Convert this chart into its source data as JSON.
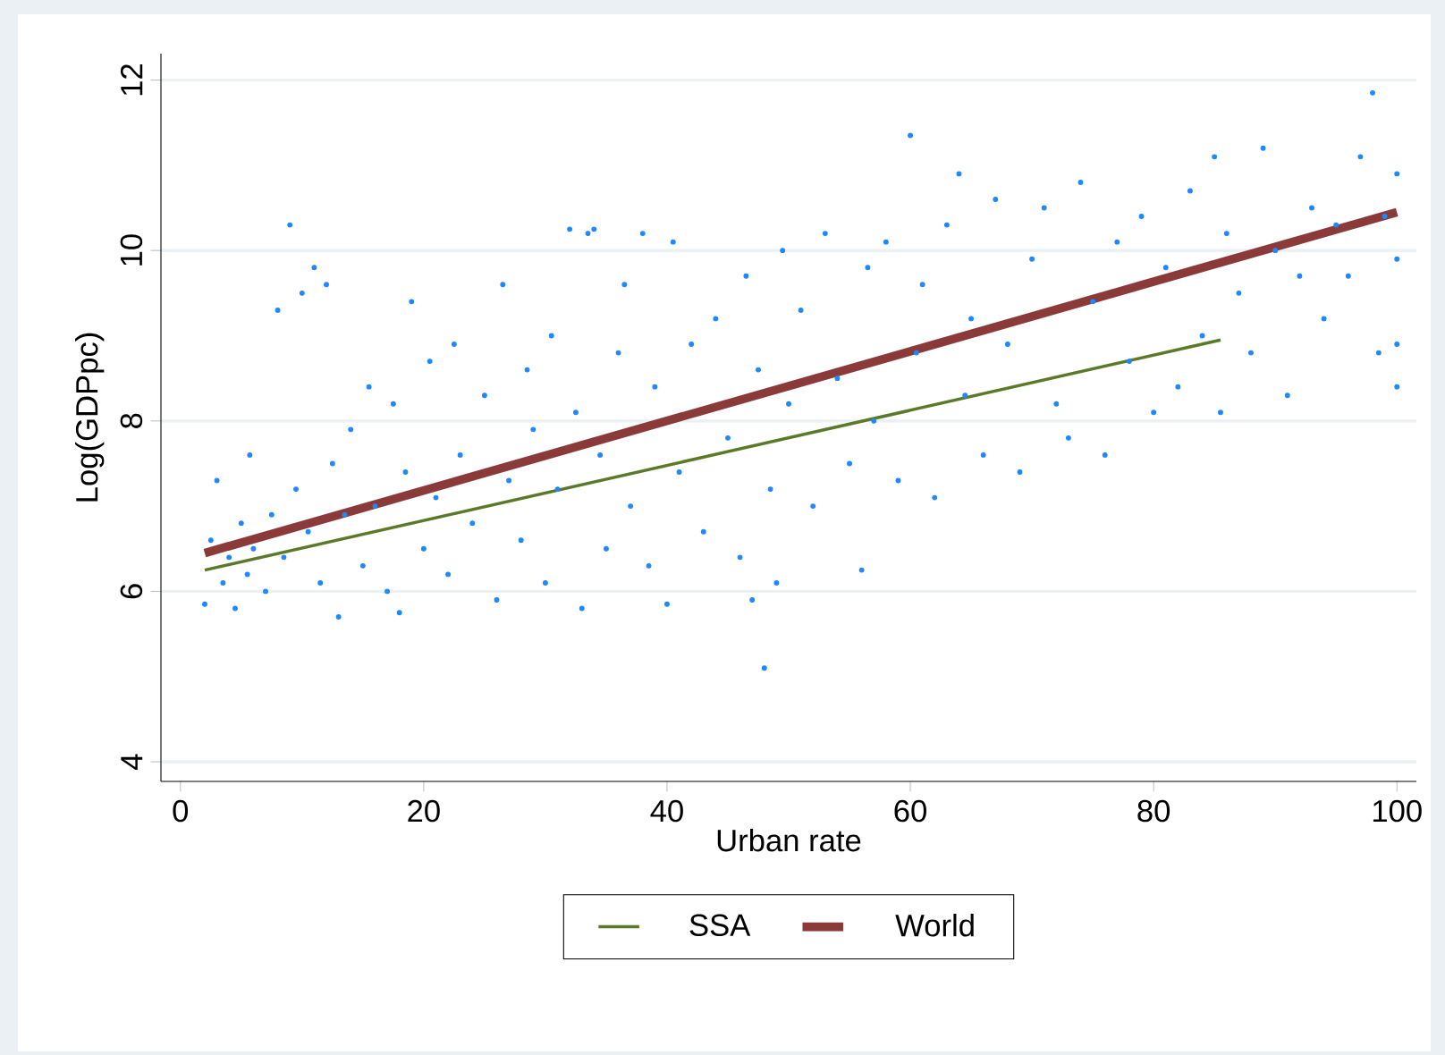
{
  "chart_data": {
    "type": "scatter",
    "xlabel": "Urban rate",
    "ylabel": "Log(GDPpc)",
    "xlim": [
      -1.6,
      101.6
    ],
    "ylim": [
      3.77,
      12.31
    ],
    "xticks": [
      0,
      20,
      40,
      60,
      80,
      100
    ],
    "yticks": [
      4,
      6,
      8,
      10,
      12
    ],
    "grid": "y",
    "legend": "bottom",
    "series": [
      {
        "color": "#1e88ff",
        "marker": "circle",
        "x": [
          2,
          2.5,
          3,
          3.5,
          4,
          4.5,
          5,
          5.5,
          5.7,
          6,
          7,
          7.5,
          8,
          8.5,
          9,
          9.5,
          10,
          10.5,
          11,
          11.5,
          12,
          12.5,
          13,
          13.5,
          14,
          15,
          15.5,
          16,
          17,
          17.5,
          18,
          18.5,
          19,
          20,
          20.5,
          21,
          22,
          22.5,
          23,
          24,
          25,
          26,
          26.5,
          27,
          28,
          28.5,
          29,
          30,
          30.5,
          31,
          32,
          32.5,
          33,
          33.5,
          34,
          34.5,
          35,
          36,
          36.5,
          37,
          38,
          38.5,
          39,
          40,
          40.5,
          41,
          42,
          43,
          44,
          45,
          46,
          46.5,
          47,
          47.5,
          48,
          48.5,
          49,
          49.5,
          50,
          51,
          52,
          53,
          54,
          55,
          56,
          56.5,
          57,
          58,
          59,
          60,
          60.5,
          61,
          62,
          63,
          64,
          64.5,
          65,
          66,
          67,
          68,
          69,
          70,
          71,
          72,
          73,
          74,
          75,
          76,
          77,
          78,
          79,
          80,
          81,
          82,
          83,
          84,
          85,
          85.5,
          86,
          87,
          88,
          89,
          90,
          91,
          92,
          93,
          94,
          95,
          96,
          97,
          98,
          98.5,
          99,
          100,
          100,
          100,
          100
        ],
        "values": [
          5.85,
          6.6,
          7.3,
          6.1,
          6.4,
          5.8,
          6.8,
          6.2,
          7.6,
          6.5,
          6.0,
          6.9,
          9.3,
          6.4,
          10.3,
          7.2,
          9.5,
          6.7,
          9.8,
          6.1,
          9.6,
          7.5,
          5.7,
          6.9,
          7.9,
          6.3,
          8.4,
          7.0,
          6.0,
          8.2,
          5.75,
          7.4,
          9.4,
          6.5,
          8.7,
          7.1,
          6.2,
          8.9,
          7.6,
          6.8,
          8.3,
          5.9,
          9.6,
          7.3,
          6.6,
          8.6,
          7.9,
          6.1,
          9.0,
          7.2,
          10.25,
          8.1,
          5.8,
          10.2,
          10.25,
          7.6,
          6.5,
          8.8,
          9.6,
          7.0,
          10.2,
          6.3,
          8.4,
          5.85,
          10.1,
          7.4,
          8.9,
          6.7,
          9.2,
          7.8,
          6.4,
          9.7,
          5.9,
          8.6,
          5.1,
          7.2,
          6.1,
          10.0,
          8.2,
          9.3,
          7.0,
          10.2,
          8.5,
          7.5,
          6.25,
          9.8,
          8.0,
          10.1,
          7.3,
          11.35,
          8.8,
          9.6,
          7.1,
          10.3,
          10.9,
          8.3,
          9.2,
          7.6,
          10.6,
          8.9,
          7.4,
          9.9,
          10.5,
          8.2,
          7.8,
          10.8,
          9.4,
          7.6,
          10.1,
          8.7,
          10.4,
          8.1,
          9.8,
          8.4,
          10.7,
          9.0,
          11.1,
          8.1,
          10.2,
          9.5,
          8.8,
          11.2,
          10.0,
          8.3,
          9.7,
          10.5,
          9.2,
          10.3,
          9.7,
          11.1,
          11.85,
          8.8,
          10.4,
          10.9,
          8.4,
          9.9,
          8.9
        ]
      },
      {
        "type": "line",
        "name": "SSA",
        "color": "#5a7a2a",
        "x": [
          2,
          85.5
        ],
        "values": [
          6.25,
          8.95
        ]
      },
      {
        "type": "line",
        "name": "World",
        "color": "#8b3a3a",
        "x": [
          2,
          100
        ],
        "values": [
          6.45,
          10.45
        ]
      }
    ]
  }
}
